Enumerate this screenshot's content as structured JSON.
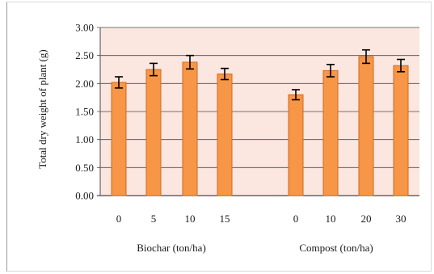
{
  "chart_data": {
    "type": "bar",
    "ylabel": "Total dry weight of plant (g)",
    "ylim": [
      0,
      3
    ],
    "yticks": [
      "0.00",
      "0.50",
      "1.00",
      "1.50",
      "2.00",
      "2.50",
      "3.00"
    ],
    "grid": true,
    "groups": [
      {
        "label": "Biochar (ton/ha)",
        "categories": [
          "0",
          "5",
          "10",
          "15"
        ],
        "values": [
          2.02,
          2.25,
          2.38,
          2.17
        ],
        "errors": [
          0.1,
          0.11,
          0.12,
          0.1
        ]
      },
      {
        "label": "Compost (ton/ha)",
        "categories": [
          "0",
          "10",
          "20",
          "30"
        ],
        "values": [
          1.8,
          2.23,
          2.48,
          2.32
        ],
        "errors": [
          0.09,
          0.11,
          0.12,
          0.11
        ]
      }
    ],
    "colors": {
      "bar_fill": "#f79646",
      "bar_stroke": "#d2691e",
      "plot_background": "#fbe6e0",
      "gridline": "#4a4a4a",
      "error_bar": "#000000"
    }
  }
}
